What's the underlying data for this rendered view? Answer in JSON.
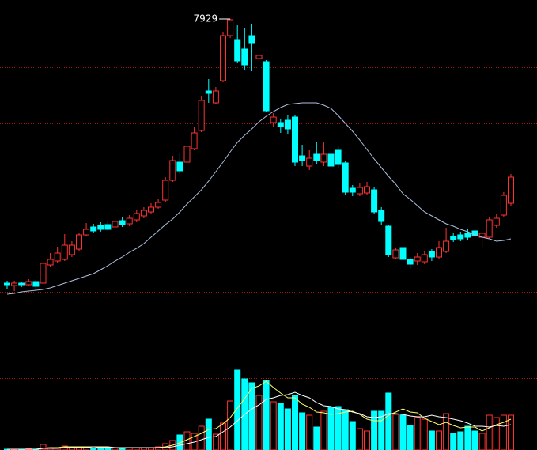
{
  "chart_data": [
    {
      "type": "candlestick",
      "ylim": [
        1965,
        8265
      ],
      "colors": {
        "up": "#ff3232",
        "down": "#00ffff"
      },
      "open": [
        3253,
        3211,
        3253,
        3225,
        3281,
        3253,
        3575,
        3645,
        3673,
        3757,
        3855,
        4107,
        4247,
        4275,
        4289,
        4247,
        4359,
        4303,
        4373,
        4443,
        4513,
        4597,
        4723,
        5073,
        5395,
        5395,
        5633,
        5955,
        6655,
        6445,
        6837,
        7635,
        7565,
        7397,
        7635,
        7229,
        7173,
        6095,
        6095,
        6137,
        6193,
        5507,
        5325,
        5535,
        5395,
        5535,
        5605,
        5381,
        4933,
        4835,
        4849,
        4905,
        4541,
        4261,
        3701,
        3883,
        3673,
        3645,
        3631,
        3813,
        3715,
        3813,
        4079,
        4107,
        4135,
        4177,
        4065,
        4065,
        4275,
        4457,
        4667
      ],
      "high": [
        3295,
        3295,
        3281,
        3323,
        3309,
        3645,
        3785,
        3897,
        4121,
        3995,
        4149,
        4317,
        4303,
        4331,
        4345,
        4429,
        4415,
        4457,
        4541,
        4597,
        4667,
        4737,
        5129,
        5507,
        5563,
        5745,
        6025,
        6557,
        6865,
        6725,
        7705,
        7929,
        7817,
        7775,
        7845,
        7313,
        7201,
        6263,
        6165,
        6235,
        6235,
        5703,
        5605,
        5745,
        5745,
        5633,
        5675,
        5423,
        4989,
        5017,
        5045,
        4947,
        4597,
        4289,
        3883,
        3925,
        3715,
        3785,
        3813,
        3855,
        3995,
        4233,
        4149,
        4163,
        4205,
        4233,
        4177,
        4415,
        4485,
        4863,
        5185
      ],
      "low": [
        3155,
        3113,
        3183,
        3197,
        3113,
        3225,
        3533,
        3603,
        3645,
        3715,
        3813,
        4079,
        4135,
        4163,
        4177,
        4205,
        4247,
        4261,
        4331,
        4401,
        4485,
        4569,
        4681,
        5045,
        5185,
        5353,
        5605,
        5927,
        6445,
        6417,
        6809,
        7593,
        7145,
        7033,
        7005,
        6865,
        6277,
        6025,
        5913,
        5885,
        5325,
        5325,
        5255,
        5353,
        5325,
        5283,
        5297,
        4821,
        4793,
        4793,
        4807,
        4485,
        4289,
        3715,
        3673,
        3477,
        3505,
        3575,
        3589,
        3645,
        3673,
        3785,
        3981,
        3995,
        4023,
        4037,
        3897,
        4037,
        4233,
        4415,
        4625
      ],
      "close": [
        3225,
        3253,
        3225,
        3281,
        3197,
        3603,
        3673,
        3785,
        3925,
        3925,
        4107,
        4205,
        4177,
        4205,
        4205,
        4345,
        4289,
        4401,
        4485,
        4541,
        4597,
        4681,
        5073,
        5423,
        5241,
        5675,
        5913,
        6487,
        6613,
        6655,
        7635,
        7915,
        7187,
        7117,
        7495,
        7285,
        6305,
        6193,
        6025,
        5983,
        5395,
        5423,
        5465,
        5423,
        5535,
        5325,
        5353,
        4863,
        4863,
        4947,
        4961,
        4513,
        4345,
        3757,
        3841,
        3673,
        3589,
        3715,
        3757,
        3715,
        3883,
        3995,
        4023,
        4037,
        4065,
        4093,
        4135,
        4373,
        4401,
        4807,
        5129
      ],
      "series": [
        {
          "color": "#aebedf",
          "values": [
            3057,
            3071,
            3099,
            3113,
            3127,
            3141,
            3169,
            3211,
            3253,
            3295,
            3337,
            3379,
            3421,
            3491,
            3561,
            3645,
            3715,
            3799,
            3869,
            3953,
            4065,
            4177,
            4289,
            4387,
            4513,
            4653,
            4779,
            4905,
            5059,
            5227,
            5395,
            5577,
            5745,
            5871,
            5983,
            6109,
            6207,
            6291,
            6361,
            6417,
            6431,
            6445,
            6445,
            6445,
            6403,
            6347,
            6221,
            6081,
            5941,
            5787,
            5619,
            5451,
            5297,
            5143,
            5003,
            4835,
            4737,
            4625,
            4513,
            4443,
            4373,
            4303,
            4261,
            4205,
            4163,
            4107,
            4065,
            4037,
            3995,
            4009,
            4037
          ]
        }
      ],
      "annotations": [
        {
          "text": "7929",
          "value": 7929
        }
      ]
    },
    {
      "type": "bar",
      "ylim": [
        0,
        117
      ],
      "values": [
        1,
        1,
        1,
        2,
        1,
        7,
        3,
        3,
        5,
        4,
        4,
        3,
        2,
        2,
        3,
        3,
        2,
        3,
        3,
        3,
        3,
        4,
        8,
        12,
        19,
        23,
        21,
        30,
        39,
        20,
        34,
        62,
        101,
        90,
        85,
        69,
        88,
        61,
        59,
        52,
        69,
        47,
        44,
        29,
        49,
        54,
        55,
        51,
        36,
        27,
        24,
        49,
        49,
        72,
        45,
        44,
        31,
        41,
        39,
        24,
        24,
        46,
        21,
        23,
        30,
        24,
        21,
        44,
        41,
        44,
        44
      ],
      "series": [
        {
          "color": "#ffff66",
          "values": [
            1,
            1,
            1,
            1,
            1,
            2,
            3,
            3,
            4,
            4,
            4,
            4,
            4,
            3,
            3,
            3,
            2,
            3,
            3,
            3,
            3,
            3,
            4,
            6,
            9,
            13,
            17,
            21,
            26,
            27,
            33,
            41,
            53,
            65,
            78,
            81,
            87,
            79,
            72,
            66,
            66,
            58,
            54,
            48,
            47,
            45,
            46,
            48,
            49,
            45,
            39,
            37,
            37,
            44,
            48,
            52,
            48,
            47,
            40,
            36,
            32,
            35,
            31,
            28,
            29,
            29,
            24,
            28,
            32,
            35,
            39
          ]
        },
        {
          "color": "#ffffff",
          "values": [
            1,
            1,
            1,
            1,
            1,
            2,
            2,
            2,
            3,
            3,
            3,
            3,
            4,
            4,
            4,
            3,
            3,
            3,
            3,
            3,
            3,
            3,
            3,
            4,
            6,
            8,
            10,
            13,
            16,
            17,
            23,
            29,
            37,
            45,
            52,
            57,
            64,
            66,
            69,
            70,
            73,
            69,
            66,
            60,
            56,
            55,
            52,
            51,
            48,
            46,
            42,
            41,
            42,
            46,
            46,
            45,
            43,
            42,
            42,
            44,
            42,
            41,
            39,
            37,
            34,
            30,
            30,
            29,
            31,
            30,
            32
          ]
        }
      ]
    }
  ]
}
